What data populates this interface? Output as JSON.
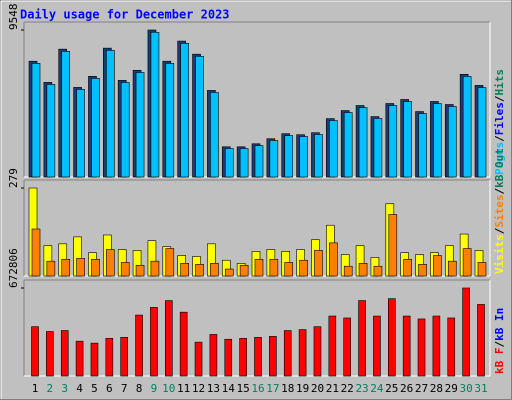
{
  "chart_data": {
    "type": "bar",
    "title": "Daily usage for December 2023",
    "categories": [
      "1",
      "2",
      "3",
      "4",
      "5",
      "6",
      "7",
      "8",
      "9",
      "10",
      "11",
      "12",
      "13",
      "14",
      "15",
      "16",
      "17",
      "18",
      "19",
      "20",
      "21",
      "22",
      "23",
      "24",
      "25",
      "26",
      "27",
      "28",
      "29",
      "30",
      "31"
    ],
    "category_colors": [
      "#000000",
      "#00805c",
      "#00805c",
      "#000000",
      "#000000",
      "#000000",
      "#000000",
      "#000000",
      "#00805c",
      "#00805c",
      "#000000",
      "#000000",
      "#000000",
      "#000000",
      "#000000",
      "#00805c",
      "#00805c",
      "#000000",
      "#000000",
      "#000000",
      "#000000",
      "#000000",
      "#00805c",
      "#00805c",
      "#000000",
      "#000000",
      "#000000",
      "#000000",
      "#000000",
      "#00805c",
      "#00805c"
    ],
    "panels": [
      {
        "ylim": [
          0,
          9548
        ],
        "yticks": [
          9548
        ],
        "legend": [
          {
            "text": "Pages",
            "color": "#00c0ff"
          },
          {
            "text": "/",
            "color": "#000000"
          },
          {
            "text": "Files",
            "color": "#0000ff"
          },
          {
            "text": "/",
            "color": "#000000"
          },
          {
            "text": "Hits",
            "color": "#00805c"
          }
        ],
        "series": [
          {
            "name": "Hits",
            "color": "#1a3c78",
            "values": [
              7520,
              6147,
              8305,
              5820,
              6540,
              8371,
              6278,
              6932,
              9548,
              7520,
              8829,
              7978,
              5624,
              1962,
              1962,
              2158,
              2485,
              2812,
              2747,
              2877,
              3793,
              4316,
              4643,
              3924,
              4774,
              5036,
              4251,
              4905,
              4709,
              6671,
              5951
            ]
          },
          {
            "name": "Pages",
            "color": "#00c0ff",
            "values": [
              7380,
              6010,
              8160,
              5690,
              6400,
              8230,
              6140,
              6790,
              9400,
              7380,
              8680,
              7840,
              5490,
              1850,
              1850,
              2040,
              2370,
              2690,
              2630,
              2760,
              3670,
              4190,
              4510,
              3800,
              4640,
              4900,
              4120,
              4770,
              4580,
              6530,
              5810
            ]
          }
        ]
      },
      {
        "ylim": [
          0,
          279
        ],
        "yticks": [
          279
        ],
        "legend": [
          {
            "text": "Visits",
            "color": "#ffff00"
          },
          {
            "text": "/",
            "color": "#000000"
          },
          {
            "text": "Sites",
            "color": "#ff8000"
          },
          {
            "text": "/",
            "color": "#000000"
          },
          {
            "text": "kB Out",
            "color": "#00805c"
          }
        ],
        "series": [
          {
            "name": "Visits",
            "color": "#ffff00",
            "values": [
              279,
              96,
              102,
              124,
              74,
              130,
              84,
              81,
              112,
              93,
              65,
              62,
              102,
              50,
              40,
              78,
              84,
              78,
              84,
              115,
              161,
              68,
              96,
              59,
              229,
              74,
              68,
              74,
              96,
              133,
              81
            ]
          },
          {
            "name": "Sites",
            "color": "#ff8000",
            "values": [
              149,
              47,
              53,
              56,
              53,
              84,
              43,
              34,
              47,
              87,
              40,
              37,
              40,
              22,
              34,
              53,
              53,
              43,
              50,
              81,
              105,
              31,
              40,
              31,
              195,
              53,
              37,
              65,
              47,
              87,
              43
            ]
          }
        ]
      },
      {
        "ylim": [
          0,
          672806
        ],
        "yticks": [
          672806
        ],
        "legend": [
          {
            "text": "kB F",
            "color": "#ff0000"
          },
          {
            "text": "/",
            "color": "#000000"
          },
          {
            "text": "kB In",
            "color": "#0000ff"
          }
        ],
        "series": [
          {
            "name": "kB F",
            "color": "#ff0000",
            "values": [
              377068,
              340101,
              347495,
              266166,
              251379,
              288347,
              295740,
              465790,
              524939,
              576693,
              487971,
              258773,
              317921,
              280953,
              288347,
              295740,
              303134,
              347495,
              354888,
              377068,
              458397,
              443610,
              576693,
              458397,
              591480,
              458397,
              436217,
              458397,
              443610,
              672806,
              547119
            ]
          }
        ]
      }
    ]
  }
}
